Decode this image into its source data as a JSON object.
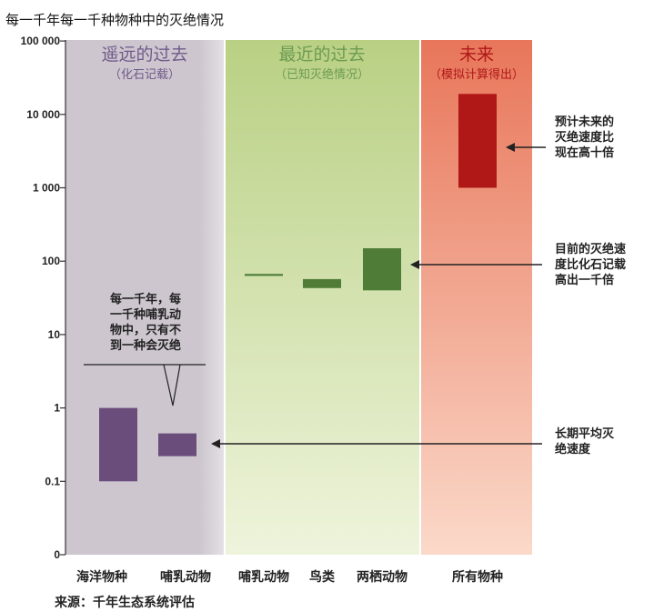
{
  "title": "每一千年每一千种物种中的灭绝情况",
  "source": "来源：千年生态系统评估",
  "zone_colors": {
    "past": "#cdc6cf",
    "past_edge": "#e4e0e4",
    "recent_top": "#b9d083",
    "recent_bottom": "#eef4dc",
    "future_top": "#e8765a",
    "future_bottom": "#fbd9c9",
    "past_title": "#6f5a8a",
    "recent_title": "#6b9b52",
    "future_title": "#b01818"
  },
  "zones": [
    {
      "key": "past",
      "title": "遥远的过去",
      "subtitle": "（化石记载）"
    },
    {
      "key": "recent",
      "title": "最近的过去",
      "subtitle": "（已知灭绝情况）"
    },
    {
      "key": "future",
      "title": "未来",
      "subtitle": "（模拟计算得出）"
    }
  ],
  "annotations": [
    {
      "key": "future",
      "lines": [
        "预计未来的",
        "灭绝速度比",
        "现在高十倍"
      ]
    },
    {
      "key": "recent",
      "lines": [
        "目前的灭绝速",
        "度比化石记载",
        "高出一千倍"
      ]
    },
    {
      "key": "longterm",
      "lines": [
        "长期平均灭",
        "绝速度"
      ]
    },
    {
      "key": "callout",
      "lines": [
        "每一千年，每",
        "一千种哺乳动",
        "物中，只有不",
        "到一种会灭绝"
      ]
    }
  ],
  "chart_data": {
    "type": "bar",
    "title": "每一千年每一千种物种中的灭绝情况",
    "yscale": "log",
    "ylim": [
      0.1,
      100000
    ],
    "ytick_labels": [
      "0",
      "0.1",
      "1",
      "10",
      "100",
      "1 000",
      "10 000",
      "100 000"
    ],
    "ytick_values": [
      0.01,
      0.1,
      1,
      10,
      100,
      1000,
      10000,
      100000
    ],
    "categories": [
      "海洋物种",
      "哺乳动物",
      "哺乳动物",
      "鸟类",
      "两栖动物",
      "所有物种"
    ],
    "ranges": [
      {
        "category": "海洋物种",
        "zone": "past",
        "low": 0.1,
        "high": 1,
        "color": "#6b4d7b"
      },
      {
        "category": "哺乳动物",
        "zone": "past",
        "low": 0.22,
        "high": 0.45,
        "color": "#6b4d7b"
      },
      {
        "category": "哺乳动物",
        "zone": "recent",
        "low": 63,
        "high": 67,
        "color": "#4f7d38"
      },
      {
        "category": "鸟类",
        "zone": "recent",
        "low": 43,
        "high": 57,
        "color": "#4f7d38"
      },
      {
        "category": "两栖动物",
        "zone": "recent",
        "low": 40,
        "high": 150,
        "color": "#4f7d38"
      },
      {
        "category": "所有物种",
        "zone": "future",
        "low": 1000,
        "high": 19000,
        "color": "#b01717"
      }
    ]
  }
}
